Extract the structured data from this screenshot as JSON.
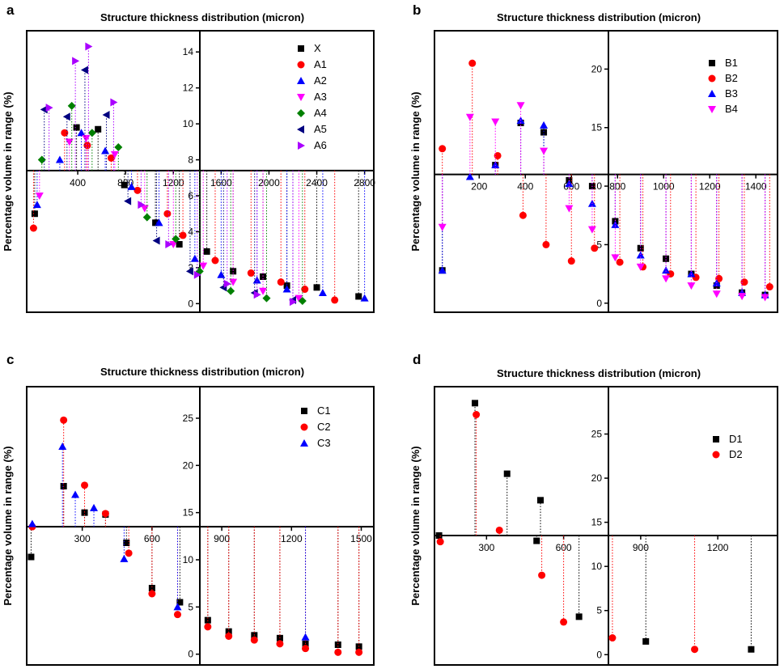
{
  "chart_data": [
    {
      "panel": "a",
      "type": "scatter",
      "title": "Structure thickness distribution (micron)",
      "ylabel": "Percentage volume in range (%)",
      "xlim": [
        0,
        2850
      ],
      "ylim": [
        -0.3,
        15
      ],
      "break_x": 1500,
      "baseline_y": 7.4,
      "x_ticks": [
        400,
        800,
        1200,
        1600,
        2000,
        2400,
        2800
      ],
      "y_ticks": [
        0,
        2,
        4,
        6,
        8,
        10,
        12,
        14
      ],
      "legend_position": "top-right",
      "series": [
        {
          "name": "X",
          "color": "#000000",
          "marker": "square",
          "x": [
            40,
            390,
            570,
            790,
            1050,
            1250,
            1480,
            1700,
            1950,
            2150,
            2400,
            2750
          ],
          "y": [
            5.0,
            9.8,
            9.7,
            6.6,
            4.5,
            3.3,
            2.9,
            1.8,
            1.5,
            1.0,
            0.9,
            0.4
          ]
        },
        {
          "name": "A1",
          "color": "#ff0000",
          "marker": "circle",
          "x": [
            30,
            290,
            480,
            680,
            900,
            1150,
            1280,
            1550,
            1850,
            2100,
            2300,
            2550
          ],
          "y": [
            4.2,
            9.5,
            8.8,
            8.1,
            6.3,
            5.0,
            3.8,
            2.4,
            1.7,
            1.2,
            0.8,
            0.2
          ]
        },
        {
          "name": "A2",
          "color": "#0000ff",
          "marker": "triangle-up",
          "x": [
            60,
            250,
            430,
            630,
            850,
            1080,
            1380,
            1600,
            1900,
            2150,
            2450,
            2800
          ],
          "y": [
            5.5,
            8.0,
            9.5,
            8.5,
            6.5,
            4.5,
            2.5,
            1.6,
            1.3,
            0.8,
            0.6,
            0.3
          ]
        },
        {
          "name": "A3",
          "color": "#ff00ff",
          "marker": "triangle-down",
          "x": [
            80,
            330,
            470,
            710,
            960,
            1200,
            1450,
            1700,
            1950,
            2250
          ],
          "y": [
            6.0,
            9.0,
            9.2,
            8.3,
            5.3,
            3.3,
            2.1,
            1.2,
            0.7,
            0.3
          ]
        },
        {
          "name": "A4",
          "color": "#008000",
          "marker": "diamond",
          "x": [
            100,
            350,
            520,
            740,
            980,
            1220,
            1420,
            1680,
            1980,
            2280
          ],
          "y": [
            8.0,
            11.0,
            9.5,
            8.7,
            4.8,
            3.6,
            1.8,
            0.7,
            0.3,
            0.15
          ]
        },
        {
          "name": "A5",
          "color": "#000080",
          "marker": "triangle-left",
          "x": [
            120,
            310,
            460,
            640,
            820,
            1060,
            1340,
            1620,
            1880,
            2200
          ],
          "y": [
            10.8,
            10.4,
            13.0,
            10.5,
            5.7,
            3.5,
            1.8,
            0.9,
            0.6,
            0.2
          ]
        },
        {
          "name": "A6",
          "color": "#aa00ff",
          "marker": "triangle-right",
          "x": [
            160,
            380,
            490,
            700,
            930,
            1160,
            1400,
            1650,
            1900,
            2200
          ],
          "y": [
            10.9,
            13.5,
            14.3,
            11.2,
            5.5,
            3.3,
            1.6,
            1.1,
            0.5,
            0.1
          ]
        }
      ]
    },
    {
      "panel": "b",
      "type": "scatter",
      "title": "Structure thickness distribution (micron)",
      "ylabel": "Percentage volume in range (%)",
      "xlim": [
        20,
        1480
      ],
      "ylim": [
        -0.5,
        23
      ],
      "break_x": 750,
      "baseline_y": 11,
      "x_ticks": [
        200,
        400,
        600,
        800,
        1000,
        1200,
        1400
      ],
      "y_ticks": [
        0,
        5,
        10,
        15,
        20
      ],
      "legend_position": "top-right",
      "series": [
        {
          "name": "B1",
          "color": "#000000",
          "marker": "square",
          "x": [
            40,
            270,
            380,
            480,
            590,
            690,
            790,
            900,
            1010,
            1120,
            1230,
            1340,
            1440
          ],
          "y": [
            2.8,
            11.8,
            15.4,
            14.6,
            10.5,
            10.0,
            7.0,
            4.7,
            3.8,
            2.5,
            1.5,
            0.9,
            0.7
          ]
        },
        {
          "name": "B2",
          "color": "#ff0000",
          "marker": "circle",
          "x": [
            40,
            170,
            280,
            390,
            490,
            600,
            700,
            810,
            910,
            1030,
            1140,
            1240,
            1350,
            1460
          ],
          "y": [
            13.2,
            20.5,
            12.6,
            7.5,
            5.0,
            3.6,
            4.7,
            3.5,
            3.1,
            2.5,
            2.2,
            2.1,
            1.8,
            1.4
          ]
        },
        {
          "name": "B3",
          "color": "#0000ff",
          "marker": "triangle-up",
          "x": [
            40,
            160,
            270,
            380,
            480,
            590,
            690,
            790,
            900,
            1010,
            1120,
            1230,
            1340,
            1440
          ],
          "y": [
            2.8,
            10.8,
            11.8,
            15.6,
            15.2,
            10.2,
            8.5,
            6.7,
            4.1,
            2.8,
            2.5,
            1.7,
            0.9,
            0.7
          ]
        },
        {
          "name": "B4",
          "color": "#ff00ff",
          "marker": "triangle-down",
          "x": [
            40,
            160,
            270,
            380,
            480,
            590,
            690,
            790,
            900,
            1010,
            1120,
            1230,
            1340,
            1440
          ],
          "y": [
            6.5,
            15.9,
            15.5,
            16.9,
            13.0,
            8.1,
            6.3,
            3.9,
            3.1,
            2.1,
            1.5,
            0.8,
            0.6,
            0.5
          ]
        }
      ]
    },
    {
      "panel": "c",
      "type": "scatter",
      "title": "Structure thickness distribution (micron)",
      "ylabel": "Percentage volume in range (%)",
      "xlim": [
        75,
        1540
      ],
      "ylim": [
        -0.8,
        28
      ],
      "break_x": 800,
      "baseline_y": 13.5,
      "x_ticks": [
        300,
        600,
        900,
        1200,
        1500
      ],
      "y_ticks": [
        0,
        5,
        10,
        15,
        20,
        25
      ],
      "legend_position": "top-right",
      "series": [
        {
          "name": "C1",
          "color": "#000000",
          "marker": "square",
          "x": [
            80,
            220,
            310,
            400,
            490,
            600,
            720,
            840,
            930,
            1040,
            1150,
            1260,
            1400,
            1490
          ],
          "y": [
            10.3,
            17.8,
            15.0,
            14.8,
            11.8,
            7.0,
            5.5,
            3.6,
            2.4,
            2.0,
            1.7,
            1.1,
            1.0,
            0.8
          ]
        },
        {
          "name": "C2",
          "color": "#ff0000",
          "marker": "circle",
          "x": [
            85,
            220,
            310,
            400,
            500,
            600,
            710,
            840,
            930,
            1040,
            1150,
            1260,
            1400,
            1490
          ],
          "y": [
            13.5,
            24.8,
            17.9,
            14.9,
            10.7,
            6.4,
            4.2,
            2.9,
            1.9,
            1.5,
            1.1,
            0.6,
            0.2,
            0.2
          ]
        },
        {
          "name": "C3",
          "color": "#0000ff",
          "marker": "triangle-up",
          "x": [
            85,
            215,
            270,
            350,
            480,
            710,
            1260
          ],
          "y": [
            13.8,
            22.0,
            16.9,
            15.5,
            10.1,
            5.0,
            1.8
          ]
        }
      ]
    },
    {
      "panel": "d",
      "type": "scatter",
      "title": "Structure thickness distribution (micron)",
      "ylabel": "Percentage volume in range (%)",
      "xlim": [
        110,
        1420
      ],
      "ylim": [
        -0.8,
        30
      ],
      "break_x": 780,
      "baseline_y": 13.5,
      "x_ticks": [
        300,
        600,
        900,
        1200
      ],
      "y_ticks": [
        0,
        5,
        10,
        15,
        20,
        25
      ],
      "legend_position": "top-right",
      "series": [
        {
          "name": "D1",
          "color": "#000000",
          "marker": "square",
          "x": [
            115,
            255,
            380,
            495,
            510,
            660,
            920,
            1330
          ],
          "y": [
            13.5,
            28.5,
            20.5,
            12.9,
            17.5,
            4.3,
            1.5,
            0.6
          ]
        },
        {
          "name": "D2",
          "color": "#ff0000",
          "marker": "circle",
          "x": [
            120,
            260,
            350,
            515,
            600,
            790,
            1110
          ],
          "y": [
            12.8,
            27.2,
            14.1,
            9.0,
            3.7,
            1.9,
            0.6
          ]
        }
      ]
    }
  ]
}
